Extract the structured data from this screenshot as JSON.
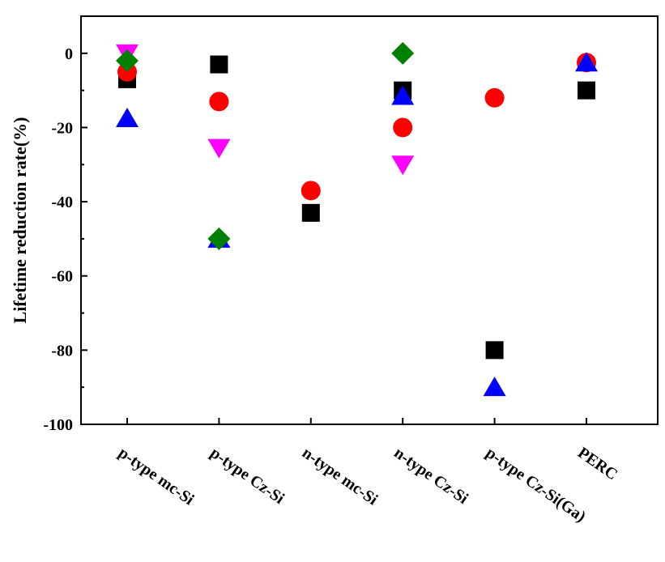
{
  "chart_data": {
    "type": "scatter",
    "title": "",
    "xlabel": "",
    "ylabel": "Lifetime reduction rate(%)",
    "categories": [
      "p-type mc-Si",
      "p-type Cz-Si",
      "n-type mc-Si",
      "n-type Cz-Si",
      "p-type Cz-Si(Ga)",
      "PERC"
    ],
    "ylim": [
      -100,
      10
    ],
    "yticks": [
      0,
      -20,
      -40,
      -60,
      -80,
      -100
    ],
    "grid": false,
    "legend": "none",
    "series": [
      {
        "marker": "square",
        "color": "#000000",
        "values": [
          -7,
          -3,
          -43,
          -10,
          -80,
          -10
        ]
      },
      {
        "marker": "circle",
        "color": "#ff0000",
        "values": [
          -5,
          -13,
          -37,
          -20,
          -12,
          -2.5
        ]
      },
      {
        "marker": "triangle-up",
        "color": "#0000ff",
        "values": [
          -17.5,
          -50,
          null,
          -11.5,
          -90,
          -2.5
        ]
      },
      {
        "marker": "triangle-down",
        "color": "#ff00ff",
        "values": [
          0,
          -25.5,
          null,
          -30,
          null,
          null
        ]
      },
      {
        "marker": "diamond",
        "color": "#008000",
        "values": [
          -2,
          -50,
          null,
          0,
          null,
          null
        ]
      }
    ]
  }
}
